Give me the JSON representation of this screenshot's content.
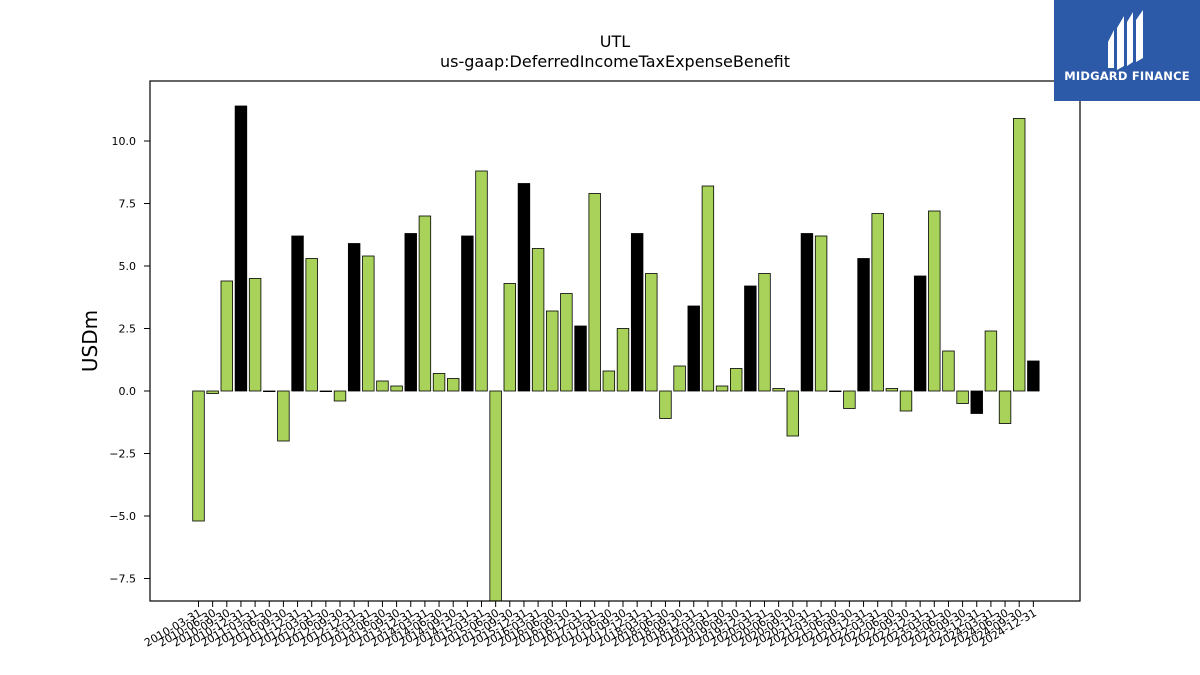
{
  "brand": {
    "name": "MIDGARD FINANCE",
    "logo_color": "#2c5aa8"
  },
  "chart_data": {
    "type": "bar",
    "title": "UTL",
    "subtitle": "us-gaap:DeferredIncomeTaxExpenseBenefit",
    "ylabel": "USDm",
    "xlabel": "",
    "ylim": [
      -8.4,
      12.4
    ],
    "yticks": [
      -7.5,
      -5.0,
      -2.5,
      0.0,
      2.5,
      5.0,
      7.5,
      10.0
    ],
    "grid": false,
    "legend": "none",
    "colors": {
      "quarterly": "#a8d25a",
      "annual": "#000000",
      "edge": "#000000"
    },
    "categories": [
      "2010-03-31",
      "2010-06-30",
      "2010-09-30",
      "2010-12-31",
      "2011-03-31",
      "2011-06-30",
      "2011-09-30",
      "2011-12-31",
      "2012-03-31",
      "2012-06-30",
      "2012-09-30",
      "2012-12-31",
      "2013-03-31",
      "2013-06-30",
      "2013-09-30",
      "2013-12-31",
      "2014-03-31",
      "2014-06-30",
      "2014-09-30",
      "2014-12-31",
      "2015-03-31",
      "2015-06-30",
      "2015-09-30",
      "2015-12-31",
      "2016-03-31",
      "2016-06-30",
      "2016-09-30",
      "2016-12-31",
      "2017-03-31",
      "2017-06-30",
      "2017-09-30",
      "2017-12-31",
      "2018-03-31",
      "2018-06-30",
      "2018-09-30",
      "2018-12-31",
      "2019-03-31",
      "2019-06-30",
      "2019-09-30",
      "2019-12-31",
      "2020-03-31",
      "2020-06-30",
      "2020-09-30",
      "2020-12-31",
      "2021-03-31",
      "2021-06-30",
      "2021-09-30",
      "2021-12-31",
      "2022-03-31",
      "2022-06-30",
      "2022-09-30",
      "2022-12-31",
      "2023-03-31",
      "2023-06-30",
      "2023-09-30",
      "2023-12-31",
      "2024-03-31",
      "2024-06-30",
      "2024-09-30",
      "2024-12-31"
    ],
    "values": [
      -5.2,
      -0.1,
      4.4,
      11.4,
      4.5,
      0.0,
      -2.0,
      6.2,
      5.3,
      0.0,
      -0.4,
      5.9,
      5.4,
      0.4,
      0.2,
      6.3,
      7.0,
      0.7,
      0.5,
      6.2,
      8.8,
      -8.4,
      4.3,
      8.3,
      5.7,
      3.2,
      3.9,
      2.6,
      7.9,
      0.8,
      2.5,
      6.3,
      4.7,
      -1.1,
      1.0,
      3.4,
      8.2,
      0.2,
      0.9,
      4.2,
      4.7,
      0.1,
      -1.8,
      6.3,
      6.2,
      0.0,
      -0.7,
      5.3,
      7.1,
      0.1,
      -0.8,
      4.6,
      7.2,
      1.6,
      -0.5,
      -0.9,
      2.4,
      -1.3,
      10.9,
      1.2
    ],
    "period_type": [
      "Q",
      "Q",
      "Q",
      "FY",
      "Q",
      "Q",
      "Q",
      "FY",
      "Q",
      "Q",
      "Q",
      "FY",
      "Q",
      "Q",
      "Q",
      "FY",
      "Q",
      "Q",
      "Q",
      "FY",
      "Q",
      "Q",
      "Q",
      "FY",
      "Q",
      "Q",
      "Q",
      "FY",
      "Q",
      "Q",
      "Q",
      "FY",
      "Q",
      "Q",
      "Q",
      "FY",
      "Q",
      "Q",
      "Q",
      "FY",
      "Q",
      "Q",
      "Q",
      "FY",
      "Q",
      "Q",
      "Q",
      "FY",
      "Q",
      "Q",
      "Q",
      "FY",
      "Q",
      "Q",
      "Q",
      "FY",
      "Q",
      "Q",
      "Q",
      "FY"
    ]
  }
}
